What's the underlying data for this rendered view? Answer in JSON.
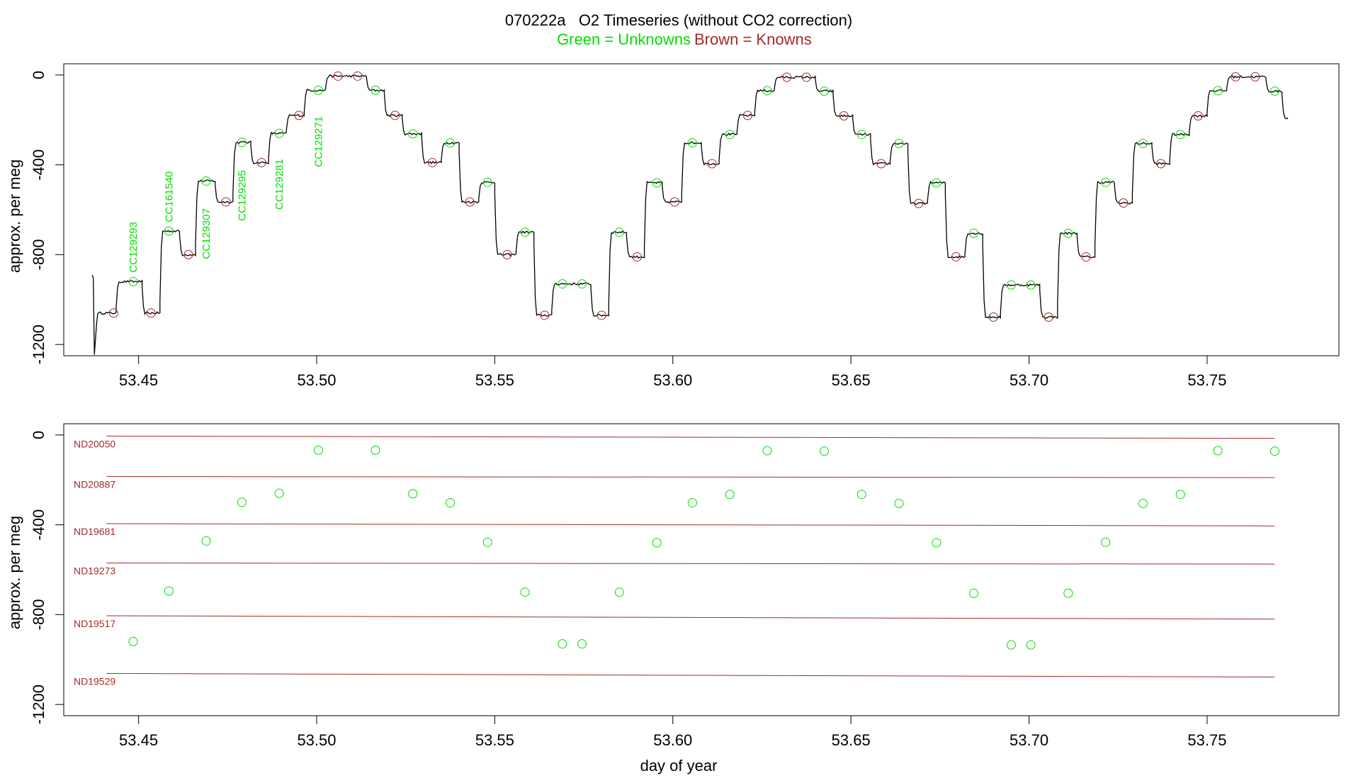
{
  "chart_data": [
    {
      "type": "line",
      "title": "070222a   O2 Timeseries (without CO2 correction)",
      "subtitle_green": "Green = Unknowns",
      "subtitle_brown": "Brown = Knowns",
      "xlabel": "",
      "ylabel": "approx. per meg",
      "xlim": [
        53.429,
        53.787
      ],
      "ylim": [
        -1250,
        50
      ],
      "xticks": [
        "53.45",
        "53.50",
        "53.55",
        "53.60",
        "53.65",
        "53.70",
        "53.75"
      ],
      "yticks": [
        "0",
        "-400",
        "-800",
        "-1200"
      ],
      "colors": {
        "trace": "#000000",
        "unknown": "#00dd00",
        "known": "#a52a2a"
      },
      "trace_steps": [
        [
          53.4385,
          53.4437,
          -1060
        ],
        [
          53.4437,
          53.451,
          -920
        ],
        [
          53.451,
          53.456,
          -1060
        ],
        [
          53.456,
          53.4615,
          -695
        ],
        [
          53.4615,
          53.466,
          -800
        ],
        [
          53.466,
          53.4715,
          -472
        ],
        [
          53.4715,
          53.4765,
          -565
        ],
        [
          53.4765,
          53.4815,
          -300
        ],
        [
          53.4815,
          53.4865,
          -390
        ],
        [
          53.4865,
          53.4915,
          -260
        ],
        [
          53.4915,
          53.4965,
          -180
        ],
        [
          53.4965,
          53.5025,
          -68
        ],
        [
          53.5025,
          53.514,
          -5
        ],
        [
          53.514,
          53.519,
          -68
        ],
        [
          53.519,
          53.524,
          -180
        ],
        [
          53.524,
          53.5295,
          -262
        ],
        [
          53.5295,
          53.535,
          -390
        ],
        [
          53.535,
          53.54,
          -302
        ],
        [
          53.54,
          53.5455,
          -565
        ],
        [
          53.5455,
          53.55,
          -478
        ],
        [
          53.55,
          53.556,
          -800
        ],
        [
          53.556,
          53.561,
          -700
        ],
        [
          53.561,
          53.566,
          -1070
        ],
        [
          53.566,
          53.577,
          -930
        ],
        [
          53.577,
          53.582,
          -1070
        ],
        [
          53.582,
          53.587,
          -700
        ],
        [
          53.587,
          53.592,
          -810
        ],
        [
          53.592,
          53.597,
          -480
        ],
        [
          53.597,
          53.6025,
          -565
        ],
        [
          53.6025,
          53.608,
          -302
        ],
        [
          53.608,
          53.613,
          -395
        ],
        [
          53.613,
          53.618,
          -265
        ],
        [
          53.618,
          53.623,
          -180
        ],
        [
          53.623,
          53.6285,
          -70
        ],
        [
          53.6285,
          53.64,
          -10
        ],
        [
          53.64,
          53.645,
          -72
        ],
        [
          53.645,
          53.6505,
          -182
        ],
        [
          53.6505,
          53.6555,
          -265
        ],
        [
          53.6555,
          53.661,
          -395
        ],
        [
          53.661,
          53.666,
          -305
        ],
        [
          53.666,
          53.6715,
          -572
        ],
        [
          53.6715,
          53.6765,
          -480
        ],
        [
          53.6765,
          53.682,
          -810
        ],
        [
          53.682,
          53.687,
          -705
        ],
        [
          53.687,
          53.692,
          -1078
        ],
        [
          53.692,
          53.703,
          -935
        ],
        [
          53.703,
          53.708,
          -1078
        ],
        [
          53.708,
          53.7135,
          -705
        ],
        [
          53.7135,
          53.7185,
          -810
        ],
        [
          53.7185,
          53.724,
          -478
        ],
        [
          53.724,
          53.729,
          -570
        ],
        [
          53.729,
          53.7345,
          -305
        ],
        [
          53.7345,
          53.7395,
          -395
        ],
        [
          53.7395,
          53.745,
          -265
        ],
        [
          53.745,
          53.75,
          -182
        ],
        [
          53.75,
          53.7555,
          -70
        ],
        [
          53.7555,
          53.7665,
          -8
        ],
        [
          53.7665,
          53.771,
          -72
        ],
        [
          53.771,
          53.7727,
          -190
        ]
      ],
      "unknown_points": [
        [
          53.4485,
          -920
        ],
        [
          53.4585,
          -695
        ],
        [
          53.469,
          -472
        ],
        [
          53.479,
          -300
        ],
        [
          53.4895,
          -260
        ],
        [
          53.5005,
          -68
        ],
        [
          53.5165,
          -68
        ],
        [
          53.527,
          -262
        ],
        [
          53.5375,
          -302
        ],
        [
          53.548,
          -478
        ],
        [
          53.5585,
          -700
        ],
        [
          53.569,
          -930
        ],
        [
          53.5745,
          -930
        ],
        [
          53.585,
          -700
        ],
        [
          53.5955,
          -480
        ],
        [
          53.6055,
          -302
        ],
        [
          53.616,
          -265
        ],
        [
          53.6265,
          -70
        ],
        [
          53.6425,
          -72
        ],
        [
          53.653,
          -265
        ],
        [
          53.6635,
          -305
        ],
        [
          53.674,
          -480
        ],
        [
          53.6845,
          -705
        ],
        [
          53.695,
          -935
        ],
        [
          53.7005,
          -935
        ],
        [
          53.711,
          -705
        ],
        [
          53.7215,
          -478
        ],
        [
          53.732,
          -305
        ],
        [
          53.7425,
          -265
        ],
        [
          53.753,
          -70
        ],
        [
          53.769,
          -72
        ]
      ],
      "known_points": [
        [
          53.443,
          -1060
        ],
        [
          53.4535,
          -1060
        ],
        [
          53.464,
          -800
        ],
        [
          53.4745,
          -565
        ],
        [
          53.4845,
          -390
        ],
        [
          53.495,
          -180
        ],
        [
          53.506,
          -5
        ],
        [
          53.5115,
          -5
        ],
        [
          53.522,
          -180
        ],
        [
          53.5325,
          -390
        ],
        [
          53.543,
          -565
        ],
        [
          53.5535,
          -800
        ],
        [
          53.564,
          -1070
        ],
        [
          53.58,
          -1070
        ],
        [
          53.59,
          -810
        ],
        [
          53.6005,
          -565
        ],
        [
          53.611,
          -395
        ],
        [
          53.621,
          -180
        ],
        [
          53.632,
          -10
        ],
        [
          53.6375,
          -10
        ],
        [
          53.648,
          -182
        ],
        [
          53.6585,
          -395
        ],
        [
          53.669,
          -572
        ],
        [
          53.6795,
          -810
        ],
        [
          53.69,
          -1078
        ],
        [
          53.7055,
          -1078
        ],
        [
          53.716,
          -810
        ],
        [
          53.7265,
          -570
        ],
        [
          53.737,
          -395
        ],
        [
          53.7475,
          -182
        ],
        [
          53.758,
          -8
        ],
        [
          53.7635,
          -8
        ]
      ],
      "annotations": [
        {
          "text": "CC129293",
          "x": 53.4485,
          "y": -880
        },
        {
          "text": "CC161540",
          "x": 53.4585,
          "y": -655
        },
        {
          "text": "CC129307",
          "x": 53.469,
          "y": -820
        },
        {
          "text": "CC129295",
          "x": 53.479,
          "y": -650
        },
        {
          "text": "CC129281",
          "x": 53.4895,
          "y": -600
        },
        {
          "text": "CC129271",
          "x": 53.5005,
          "y": -410
        }
      ]
    },
    {
      "type": "scatter",
      "title": "",
      "xlabel": "day of year",
      "ylabel": "approx. per meg",
      "xlim": [
        53.429,
        53.787
      ],
      "ylim": [
        -1250,
        50
      ],
      "xticks": [
        "53.45",
        "53.50",
        "53.55",
        "53.60",
        "53.65",
        "53.70",
        "53.75"
      ],
      "yticks": [
        "0",
        "-400",
        "-800",
        "-1200"
      ],
      "reference_lines": [
        {
          "name": "ND20050",
          "y_start": -5,
          "y_end": -15
        },
        {
          "name": "ND20887",
          "y_start": -185,
          "y_end": -190
        },
        {
          "name": "ND19681",
          "y_start": -395,
          "y_end": -405
        },
        {
          "name": "ND19273",
          "y_start": -570,
          "y_end": -575
        },
        {
          "name": "ND19517",
          "y_start": -805,
          "y_end": -820
        },
        {
          "name": "ND19529",
          "y_start": -1062,
          "y_end": -1078
        }
      ],
      "unknown_points": [
        [
          53.4485,
          -920
        ],
        [
          53.4585,
          -695
        ],
        [
          53.469,
          -472
        ],
        [
          53.479,
          -300
        ],
        [
          53.4895,
          -260
        ],
        [
          53.5005,
          -68
        ],
        [
          53.5165,
          -68
        ],
        [
          53.527,
          -262
        ],
        [
          53.5375,
          -302
        ],
        [
          53.548,
          -478
        ],
        [
          53.5585,
          -700
        ],
        [
          53.569,
          -930
        ],
        [
          53.5745,
          -930
        ],
        [
          53.585,
          -700
        ],
        [
          53.5955,
          -480
        ],
        [
          53.6055,
          -302
        ],
        [
          53.616,
          -265
        ],
        [
          53.6265,
          -70
        ],
        [
          53.6425,
          -72
        ],
        [
          53.653,
          -265
        ],
        [
          53.6635,
          -305
        ],
        [
          53.674,
          -480
        ],
        [
          53.6845,
          -705
        ],
        [
          53.695,
          -935
        ],
        [
          53.7005,
          -935
        ],
        [
          53.711,
          -705
        ],
        [
          53.7215,
          -478
        ],
        [
          53.732,
          -305
        ],
        [
          53.7425,
          -265
        ],
        [
          53.753,
          -70
        ],
        [
          53.769,
          -72
        ]
      ]
    }
  ]
}
